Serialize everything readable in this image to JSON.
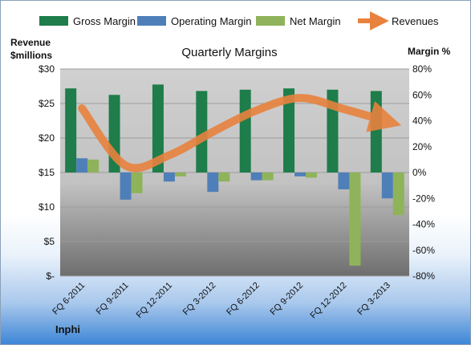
{
  "chart_data": {
    "type": "bar",
    "title": "Quarterly Margins",
    "company": "Inphi",
    "ylabel_left": [
      "Revenue",
      "$millions"
    ],
    "ylabel_right": "Margin %",
    "categories": [
      "FQ 6-2011",
      "FQ 9-2011",
      "FQ 12-2011",
      "FQ 3-2012",
      "FQ 6-2012",
      "FQ 9-2012",
      "FQ 12-2012",
      "FQ 3-2013"
    ],
    "left_axis": {
      "min": 0,
      "max": 30,
      "step": 5,
      "tick_labels": [
        "$-",
        "$5",
        "$10",
        "$15",
        "$20",
        "$25",
        "$30"
      ]
    },
    "right_axis": {
      "min": -80,
      "max": 80,
      "step": 20,
      "tick_labels": [
        "-80%",
        "-60%",
        "-40%",
        "-20%",
        "0%",
        "20%",
        "40%",
        "60%",
        "80%"
      ]
    },
    "series": [
      {
        "name": "Gross Margin",
        "color": "#1e7d4a",
        "axis": "right",
        "values": [
          65,
          60,
          68,
          63,
          64,
          65,
          64,
          63
        ]
      },
      {
        "name": "Operating Margin",
        "color": "#4f7fb8",
        "axis": "right",
        "values": [
          11,
          -21,
          -7,
          -15,
          -6,
          -3,
          -13,
          -20
        ]
      },
      {
        "name": "Net Margin",
        "color": "#8fb35a",
        "axis": "right",
        "values": [
          10,
          -16,
          -3,
          -7,
          -6,
          -4,
          -72,
          -33
        ]
      },
      {
        "name": "Revenues",
        "color": "#e8823e",
        "axis": "left",
        "type": "line",
        "values": [
          24.3,
          16.0,
          17.5,
          20.9,
          24.0,
          25.8,
          24.2,
          22.4
        ]
      }
    ],
    "legend_position": "top",
    "grid": true
  }
}
